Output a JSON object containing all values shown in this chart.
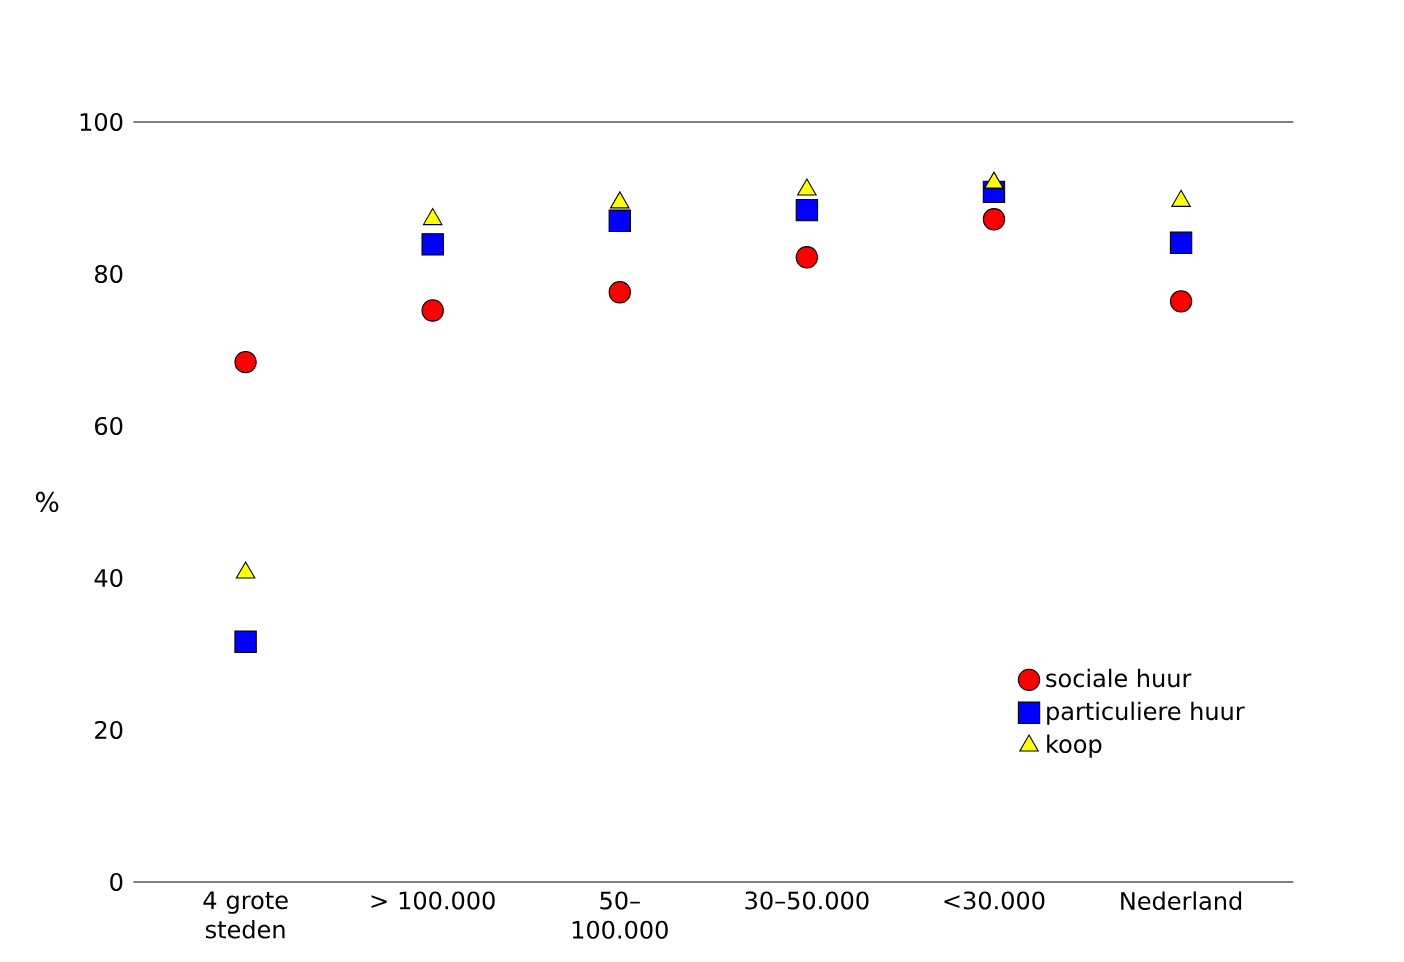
{
  "chart_data": {
    "type": "scatter",
    "ylabel": "%",
    "categories": [
      "4 grote steden",
      "> 100.000",
      "50–100.000",
      "30–50.000",
      "<30.000",
      "Nederland"
    ],
    "ylim": [
      0,
      100
    ],
    "yticks": [
      0,
      20,
      40,
      60,
      80,
      100
    ],
    "grid": false,
    "legend": "bottom right",
    "series": [
      {
        "name": "sociale huur",
        "color": "#ff0000",
        "marker": "circle",
        "values": [
          68.4,
          75.2,
          77.6,
          82.2,
          87.2,
          76.4
        ]
      },
      {
        "name": "particuliere huur",
        "color": "#0000ff",
        "marker": "square",
        "values": [
          31.6,
          83.9,
          87.0,
          88.4,
          90.8,
          84.1
        ]
      },
      {
        "name": "koop",
        "color": "#ffff00",
        "marker": "triangle",
        "values": [
          40.7,
          87.2,
          89.4,
          91.1,
          92.0,
          89.6
        ]
      }
    ]
  }
}
